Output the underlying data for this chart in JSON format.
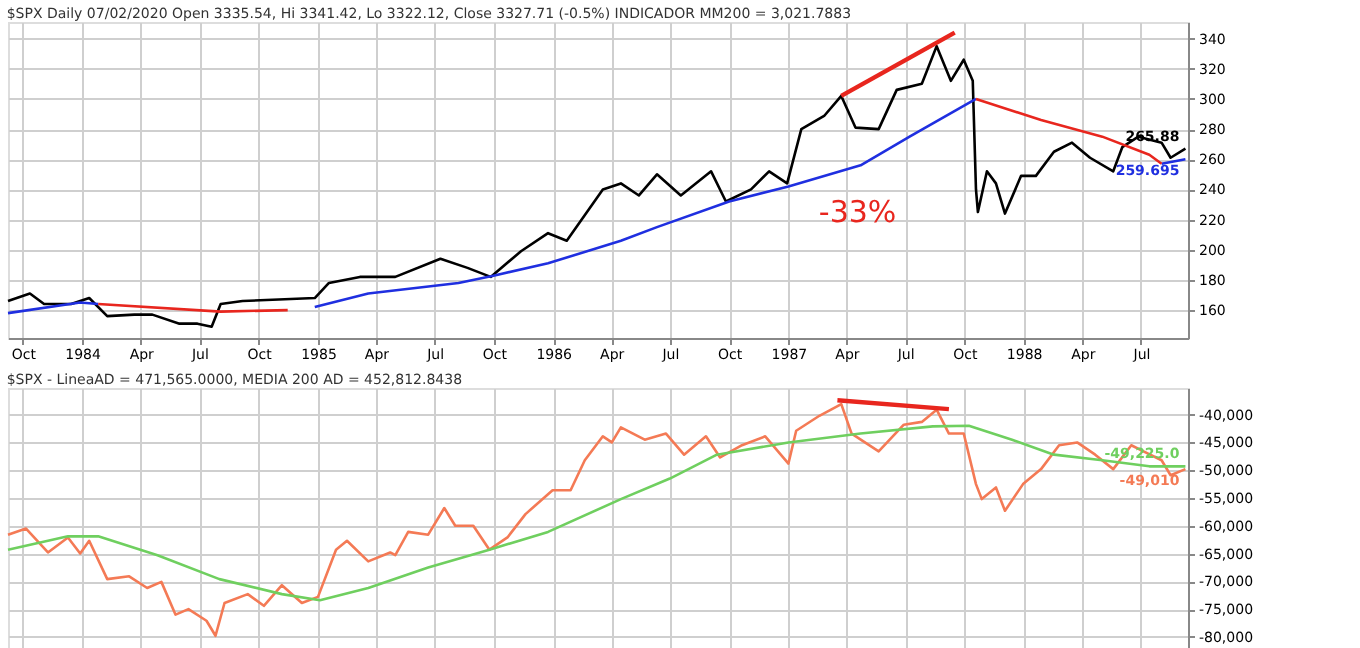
{
  "chart_data": [
    {
      "type": "line",
      "title": "$SPX Daily 07/02/2020 Open 3335.54, Hi 3341.42, Lo 3322.12, Close 3327.71 (-0.5%) INDICADOR MM200 = 3,021.7883",
      "xlim": [
        "1983-09-08",
        "1988-09-12"
      ],
      "ylim": [
        141.5,
        351
      ],
      "yticks": [
        160,
        180,
        200,
        220,
        240,
        260,
        280,
        300,
        320,
        340
      ],
      "xticks": [
        {
          "value": "1983-10-01",
          "label": "Oct"
        },
        {
          "value": "1984-01-01",
          "label": "1984"
        },
        {
          "value": "1984-04-01",
          "label": "Apr"
        },
        {
          "value": "1984-07-01",
          "label": "Jul"
        },
        {
          "value": "1984-10-01",
          "label": "Oct"
        },
        {
          "value": "1985-01-01",
          "label": "1985"
        },
        {
          "value": "1985-04-01",
          "label": "Apr"
        },
        {
          "value": "1985-07-01",
          "label": "Jul"
        },
        {
          "value": "1985-10-01",
          "label": "Oct"
        },
        {
          "value": "1986-01-01",
          "label": "1986"
        },
        {
          "value": "1986-04-01",
          "label": "Apr"
        },
        {
          "value": "1986-07-01",
          "label": "Jul"
        },
        {
          "value": "1986-10-01",
          "label": "Oct"
        },
        {
          "value": "1987-01-01",
          "label": "1987"
        },
        {
          "value": "1987-04-01",
          "label": "Apr"
        },
        {
          "value": "1987-07-01",
          "label": "Jul"
        },
        {
          "value": "1987-10-01",
          "label": "Oct"
        },
        {
          "value": "1988-01-01",
          "label": "1988"
        },
        {
          "value": "1988-04-01",
          "label": "Apr"
        },
        {
          "value": "1988-07-01",
          "label": "Jul"
        }
      ],
      "grid": true,
      "series": [
        {
          "color": "#000000",
          "x": [
            "1983-09-08",
            "1983-10-12",
            "1983-11-03",
            "1983-12-15",
            "1984-01-12",
            "1984-02-09",
            "1984-03-22",
            "1984-04-19",
            "1984-05-31",
            "1984-06-28",
            "1984-07-20",
            "1984-08-03",
            "1984-09-06",
            "1984-11-01",
            "1984-12-27",
            "1985-01-18",
            "1985-03-07",
            "1985-05-01",
            "1985-07-10",
            "1985-08-21",
            "1985-09-26",
            "1985-11-12",
            "1985-12-24",
            "1986-01-22",
            "1986-03-19",
            "1986-04-16",
            "1986-05-14",
            "1986-06-11",
            "1986-07-18",
            "1986-09-03",
            "1986-09-26",
            "1986-11-04",
            "1986-12-02",
            "1986-12-30",
            "1987-01-21",
            "1987-02-26",
            "1987-03-24",
            "1987-04-15",
            "1987-05-21",
            "1987-06-18",
            "1987-07-27",
            "1987-08-19",
            "1987-09-10",
            "1987-09-30",
            "1987-10-14",
            "1987-10-19",
            "1987-10-22",
            "1987-11-05",
            "1987-11-19",
            "1987-12-03",
            "1987-12-28",
            "1988-01-20",
            "1988-02-17",
            "1988-03-16",
            "1988-04-13",
            "1988-05-19",
            "1988-06-02",
            "1988-06-27",
            "1988-08-02",
            "1988-08-16",
            "1988-09-08"
          ],
          "values": [
            166,
            171,
            164,
            164,
            168,
            156,
            157,
            157,
            151,
            151,
            149,
            164,
            166,
            167,
            168,
            178,
            182,
            182,
            194,
            188,
            182,
            199,
            211,
            206,
            240,
            244,
            236,
            250,
            236,
            252,
            232,
            240,
            252,
            244,
            280,
            289,
            302,
            281,
            280,
            306,
            310,
            335,
            312,
            326,
            312,
            240,
            225,
            252,
            244,
            224,
            249,
            249,
            265,
            271,
            261,
            252,
            268,
            275,
            271,
            261,
            267
          ]
        },
        {
          "color": "#1f2fe0",
          "x": [
            "1983-09-08",
            "1983-12-29",
            "1984-01-26",
            "1984-11-15",
            "1984-12-27",
            "1985-03-20",
            "1985-08-07",
            "1985-10-02",
            "1985-12-24",
            "1986-04-16",
            "1986-06-11",
            "1986-10-01",
            "1987-01-01",
            "1987-04-23",
            "1987-07-08",
            "1987-10-19",
            "1987-10-20",
            "1988-08-02",
            "1988-09-08"
          ],
          "values": [
            158,
            165,
            164,
            null,
            162,
            171,
            178,
            183,
            191,
            206,
            215,
            232,
            242,
            256,
            275,
            300,
            null,
            257,
            260
          ]
        },
        {
          "color": "#e8261e",
          "x": [
            "1984-01-26",
            "1984-08-03",
            "1984-11-15",
            "1984-11-16",
            "1987-10-19",
            "1988-01-28",
            "1988-05-02",
            "1988-07-14",
            "1988-08-02"
          ],
          "values": [
            164,
            159,
            160,
            null,
            300,
            286,
            275,
            263,
            257
          ]
        },
        {
          "color": "#e8261e",
          "x": [
            "1987-03-24",
            "1987-09-16"
          ],
          "values": [
            302,
            344
          ]
        }
      ],
      "annotations": [
        "-33%",
        {
          "text": "265.88",
          "x": "1988-09-08",
          "y": 267
        },
        {
          "text": "259.695",
          "x": "1988-09-08",
          "y": 260
        }
      ]
    },
    {
      "type": "line",
      "title": "$SPX - LineaAD = 471,565.0000, MEDIA 200 AD = 452,812.8438",
      "xlim": [
        "1983-09-08",
        "1988-09-12"
      ],
      "ylim": [
        -82000,
        -35200
      ],
      "tick_labels": "y",
      "yticks": [
        {
          "value": -40000,
          "label": "-40,000"
        },
        {
          "value": -45000,
          "label": "-45,000"
        },
        {
          "value": -50000,
          "label": "-50,000"
        },
        {
          "value": -55000,
          "label": "-55,000"
        },
        {
          "value": -60000,
          "label": "-60,000"
        },
        {
          "value": -65000,
          "label": "-65,000"
        },
        {
          "value": -70000,
          "label": "-70,000"
        },
        {
          "value": -75000,
          "label": "-75,000"
        },
        {
          "value": -80000,
          "label": "-80,000"
        }
      ],
      "xticks": [
        {
          "value": "1983-10-01",
          "label": null
        },
        {
          "value": "1984-01-01",
          "label": null
        },
        {
          "value": "1984-04-01",
          "label": null
        },
        {
          "value": "1984-07-01",
          "label": null
        },
        {
          "value": "1984-10-01",
          "label": null
        },
        {
          "value": "1985-01-01",
          "label": null
        },
        {
          "value": "1985-04-01",
          "label": null
        },
        {
          "value": "1985-07-01",
          "label": null
        },
        {
          "value": "1985-10-01",
          "label": null
        },
        {
          "value": "1986-01-01",
          "label": null
        },
        {
          "value": "1986-04-01",
          "label": null
        },
        {
          "value": "1986-07-01",
          "label": null
        },
        {
          "value": "1986-10-01",
          "label": null
        },
        {
          "value": "1987-01-01",
          "label": null
        },
        {
          "value": "1987-04-01",
          "label": null
        },
        {
          "value": "1987-07-01",
          "label": null
        },
        {
          "value": "1987-10-01",
          "label": null
        },
        {
          "value": "1988-01-01",
          "label": null
        },
        {
          "value": "1988-04-01",
          "label": null
        },
        {
          "value": "1988-07-01",
          "label": null
        }
      ],
      "grid": true,
      "series": [
        {
          "color": "#f47a55",
          "x": [
            "1983-09-08",
            "1983-10-06",
            "1983-11-09",
            "1983-12-10",
            "1983-12-29",
            "1984-01-12",
            "1984-02-09",
            "1984-03-14",
            "1984-04-11",
            "1984-05-03",
            "1984-05-25",
            "1984-06-14",
            "1984-07-12",
            "1984-07-26",
            "1984-08-09",
            "1984-09-14",
            "1984-10-09",
            "1984-11-06",
            "1984-12-07",
            "1985-01-01",
            "1985-01-29",
            "1985-02-15",
            "1985-03-20",
            "1985-04-23",
            "1985-05-01",
            "1985-05-21",
            "1985-06-21",
            "1985-07-16",
            "1985-08-02",
            "1985-08-30",
            "1985-09-24",
            "1985-10-22",
            "1985-11-19",
            "1985-12-31",
            "1986-01-28",
            "1986-02-19",
            "1986-03-19",
            "1986-04-02",
            "1986-04-16",
            "1986-05-23",
            "1986-06-25",
            "1986-07-23",
            "1986-08-26",
            "1986-09-17",
            "1986-10-21",
            "1986-11-26",
            "1987-01-01",
            "1987-01-13",
            "1987-02-18",
            "1987-03-24",
            "1987-04-09",
            "1987-05-21",
            "1987-06-29",
            "1987-07-27",
            "1987-08-19",
            "1987-09-07",
            "1987-09-30",
            "1987-10-19",
            "1987-10-28",
            "1987-11-19",
            "1987-12-03",
            "1987-12-31",
            "1988-01-28",
            "1988-02-25",
            "1988-03-24",
            "1988-04-21",
            "1988-05-19",
            "1988-06-16",
            "1988-07-05",
            "1988-08-02",
            "1988-08-16",
            "1988-09-08"
          ],
          "values": [
            -61600,
            -60500,
            -64800,
            -62100,
            -65000,
            -62700,
            -69600,
            -69100,
            -71200,
            -70100,
            -76000,
            -75000,
            -77100,
            -79800,
            -73900,
            -72300,
            -74400,
            -70700,
            -73900,
            -72800,
            -64300,
            -62700,
            -66400,
            -64800,
            -65300,
            -61100,
            -61600,
            -56800,
            -60000,
            -60000,
            -64300,
            -62100,
            -57900,
            -53600,
            -53600,
            -48200,
            -43900,
            -45000,
            -42300,
            -44500,
            -43400,
            -47200,
            -43900,
            -47700,
            -45500,
            -43900,
            -48800,
            -42900,
            -40200,
            -38100,
            -43400,
            -46600,
            -41800,
            -41300,
            -39100,
            -43400,
            -43400,
            -52500,
            -55200,
            -53100,
            -57300,
            -52500,
            -49800,
            -45500,
            -45000,
            -47200,
            -49800,
            -45500,
            -46600,
            -48200,
            -50900,
            -49800
          ]
        },
        {
          "color": "#6fcf5f",
          "x": [
            "1983-09-08",
            "1983-12-10",
            "1984-01-26",
            "1984-04-27",
            "1984-08-01",
            "1984-11-06",
            "1985-01-04",
            "1985-03-20",
            "1985-06-21",
            "1985-09-24",
            "1985-12-24",
            "1986-04-16",
            "1986-07-01",
            "1986-09-12",
            "1987-01-01",
            "1987-04-23",
            "1987-08-13",
            "1987-10-08",
            "1987-12-14",
            "1988-02-17",
            "1988-05-02",
            "1988-07-14",
            "1988-09-08"
          ],
          "values": [
            -64300,
            -61900,
            -61900,
            -65300,
            -69600,
            -72300,
            -73400,
            -71200,
            -67500,
            -64300,
            -61100,
            -55200,
            -51500,
            -47200,
            -45000,
            -43400,
            -42100,
            -42000,
            -44500,
            -47200,
            -48200,
            -49300,
            -49300
          ]
        },
        {
          "color": "#e8261e",
          "x": [
            "1987-03-18",
            "1987-09-07"
          ],
          "values": [
            -37400,
            -39000
          ]
        }
      ],
      "annotations": [
        {
          "text": "-49,225.0",
          "x": "1988-09-08",
          "y": -49300
        },
        {
          "text": "-49,010",
          "x": "1988-09-08",
          "y": -49800
        }
      ]
    }
  ]
}
